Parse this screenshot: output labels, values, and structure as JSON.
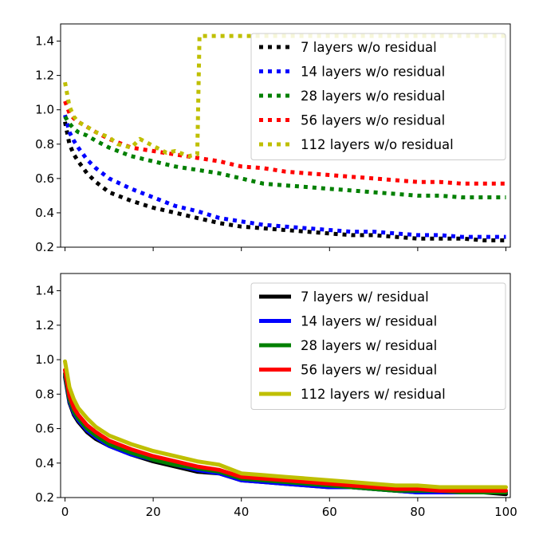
{
  "chart_data": [
    {
      "type": "line",
      "title": "",
      "xlabel": "",
      "ylabel": "",
      "xlim": [
        -1,
        101
      ],
      "ylim": [
        0.2,
        1.5
      ],
      "xticks": [
        0,
        20,
        40,
        60,
        80,
        100
      ],
      "xtick_labels_shown": false,
      "yticks": [
        0.2,
        0.4,
        0.6,
        0.8,
        1.0,
        1.2,
        1.4
      ],
      "ytick_labels": [
        "0.2",
        "0.4",
        "0.6",
        "0.8",
        "1.0",
        "1.2",
        "1.4"
      ],
      "grid": false,
      "legend_position": "upper-right",
      "line_style": "dotted",
      "series": [
        {
          "name": "7 layers w/o residual",
          "color": "#000000",
          "x": [
            0,
            1,
            2,
            3,
            5,
            7,
            10,
            15,
            20,
            25,
            30,
            35,
            40,
            45,
            50,
            55,
            60,
            65,
            70,
            75,
            80,
            85,
            90,
            95,
            100
          ],
          "y": [
            0.93,
            0.8,
            0.74,
            0.7,
            0.63,
            0.58,
            0.52,
            0.47,
            0.43,
            0.4,
            0.37,
            0.34,
            0.32,
            0.31,
            0.3,
            0.29,
            0.28,
            0.27,
            0.27,
            0.26,
            0.25,
            0.25,
            0.25,
            0.24,
            0.24
          ]
        },
        {
          "name": "14 layers w/o residual",
          "color": "#0000ff",
          "x": [
            0,
            1,
            2,
            3,
            5,
            7,
            10,
            15,
            20,
            25,
            30,
            35,
            40,
            45,
            50,
            55,
            60,
            65,
            70,
            75,
            80,
            85,
            90,
            95,
            100
          ],
          "y": [
            0.97,
            0.87,
            0.82,
            0.78,
            0.71,
            0.66,
            0.6,
            0.54,
            0.49,
            0.44,
            0.41,
            0.37,
            0.35,
            0.33,
            0.32,
            0.31,
            0.3,
            0.29,
            0.29,
            0.28,
            0.27,
            0.27,
            0.26,
            0.26,
            0.26
          ]
        },
        {
          "name": "28 layers w/o residual",
          "color": "#008000",
          "x": [
            0,
            1,
            2,
            3,
            5,
            7,
            10,
            15,
            20,
            25,
            30,
            35,
            40,
            45,
            50,
            55,
            60,
            65,
            70,
            75,
            80,
            85,
            90,
            95,
            100
          ],
          "y": [
            0.96,
            0.92,
            0.89,
            0.87,
            0.85,
            0.82,
            0.78,
            0.73,
            0.7,
            0.67,
            0.65,
            0.63,
            0.6,
            0.57,
            0.56,
            0.55,
            0.54,
            0.53,
            0.52,
            0.51,
            0.5,
            0.5,
            0.49,
            0.49,
            0.49
          ]
        },
        {
          "name": "56 layers w/o residual",
          "color": "#ff0000",
          "x": [
            0,
            1,
            2,
            3,
            5,
            7,
            10,
            15,
            20,
            25,
            30,
            35,
            40,
            45,
            50,
            55,
            60,
            65,
            70,
            75,
            80,
            85,
            90,
            95,
            100
          ],
          "y": [
            1.05,
            0.98,
            0.95,
            0.93,
            0.9,
            0.87,
            0.83,
            0.78,
            0.76,
            0.74,
            0.72,
            0.7,
            0.67,
            0.66,
            0.64,
            0.63,
            0.62,
            0.61,
            0.6,
            0.59,
            0.58,
            0.58,
            0.57,
            0.57,
            0.57
          ]
        },
        {
          "name": "112 layers w/o residual",
          "color": "#bfbf00",
          "x": [
            0,
            1,
            2,
            3,
            5,
            7,
            10,
            12,
            15,
            17,
            20,
            23,
            25,
            28,
            30,
            30.5,
            35,
            40,
            50,
            60,
            70,
            80,
            90,
            100
          ],
          "y": [
            1.16,
            1.02,
            0.96,
            0.93,
            0.9,
            0.87,
            0.84,
            0.8,
            0.78,
            0.83,
            0.79,
            0.75,
            0.76,
            0.73,
            0.74,
            1.43,
            1.43,
            1.43,
            1.43,
            1.43,
            1.43,
            1.43,
            1.43,
            1.43
          ]
        }
      ]
    },
    {
      "type": "line",
      "title": "",
      "xlabel": "",
      "ylabel": "",
      "xlim": [
        -1,
        101
      ],
      "ylim": [
        0.2,
        1.5
      ],
      "xticks": [
        0,
        20,
        40,
        60,
        80,
        100
      ],
      "xtick_labels": [
        "0",
        "20",
        "40",
        "60",
        "80",
        "100"
      ],
      "yticks": [
        0.2,
        0.4,
        0.6,
        0.8,
        1.0,
        1.2,
        1.4
      ],
      "ytick_labels": [
        "0.2",
        "0.4",
        "0.6",
        "0.8",
        "1.0",
        "1.2",
        "1.4"
      ],
      "grid": false,
      "legend_position": "upper-right",
      "line_style": "solid",
      "series": [
        {
          "name": "7 layers w/ residual",
          "color": "#000000",
          "x": [
            0,
            1,
            2,
            3,
            5,
            7,
            10,
            15,
            20,
            25,
            30,
            35,
            40,
            45,
            50,
            55,
            60,
            65,
            70,
            75,
            80,
            85,
            90,
            95,
            100
          ],
          "y": [
            0.9,
            0.75,
            0.68,
            0.64,
            0.58,
            0.54,
            0.5,
            0.45,
            0.41,
            0.38,
            0.35,
            0.34,
            0.3,
            0.29,
            0.28,
            0.27,
            0.26,
            0.26,
            0.25,
            0.24,
            0.23,
            0.23,
            0.23,
            0.23,
            0.22
          ]
        },
        {
          "name": "14 layers w/ residual",
          "color": "#0000ff",
          "x": [
            0,
            1,
            2,
            3,
            5,
            7,
            10,
            15,
            20,
            25,
            30,
            35,
            40,
            45,
            50,
            55,
            60,
            65,
            70,
            75,
            80,
            85,
            90,
            95,
            100
          ],
          "y": [
            0.91,
            0.76,
            0.69,
            0.65,
            0.59,
            0.55,
            0.5,
            0.45,
            0.42,
            0.39,
            0.36,
            0.34,
            0.3,
            0.29,
            0.28,
            0.27,
            0.26,
            0.26,
            0.25,
            0.24,
            0.23,
            0.23,
            0.23,
            0.23,
            0.23
          ]
        },
        {
          "name": "28 layers w/ residual",
          "color": "#008000",
          "x": [
            0,
            1,
            2,
            3,
            5,
            7,
            10,
            15,
            20,
            25,
            30,
            35,
            40,
            45,
            50,
            55,
            60,
            65,
            70,
            75,
            80,
            85,
            90,
            95,
            100
          ],
          "y": [
            0.92,
            0.77,
            0.7,
            0.66,
            0.6,
            0.56,
            0.51,
            0.46,
            0.42,
            0.39,
            0.37,
            0.35,
            0.31,
            0.3,
            0.29,
            0.28,
            0.27,
            0.26,
            0.25,
            0.24,
            0.24,
            0.24,
            0.23,
            0.23,
            0.23
          ]
        },
        {
          "name": "56 layers w/ residual",
          "color": "#ff0000",
          "x": [
            0,
            1,
            2,
            3,
            5,
            7,
            10,
            15,
            20,
            25,
            30,
            35,
            40,
            45,
            50,
            55,
            60,
            65,
            70,
            75,
            80,
            85,
            90,
            95,
            100
          ],
          "y": [
            0.94,
            0.79,
            0.72,
            0.68,
            0.62,
            0.58,
            0.53,
            0.48,
            0.44,
            0.41,
            0.38,
            0.36,
            0.32,
            0.31,
            0.3,
            0.29,
            0.28,
            0.27,
            0.26,
            0.25,
            0.25,
            0.24,
            0.24,
            0.24,
            0.24
          ]
        },
        {
          "name": "112 layers w/ residual",
          "color": "#bfbf00",
          "x": [
            0,
            1,
            2,
            3,
            5,
            7,
            10,
            15,
            20,
            25,
            30,
            35,
            40,
            45,
            50,
            55,
            60,
            65,
            70,
            75,
            80,
            85,
            90,
            95,
            100
          ],
          "y": [
            0.99,
            0.84,
            0.77,
            0.72,
            0.66,
            0.61,
            0.56,
            0.51,
            0.47,
            0.44,
            0.41,
            0.39,
            0.34,
            0.33,
            0.32,
            0.31,
            0.3,
            0.29,
            0.28,
            0.27,
            0.27,
            0.26,
            0.26,
            0.26,
            0.26
          ]
        }
      ]
    }
  ]
}
